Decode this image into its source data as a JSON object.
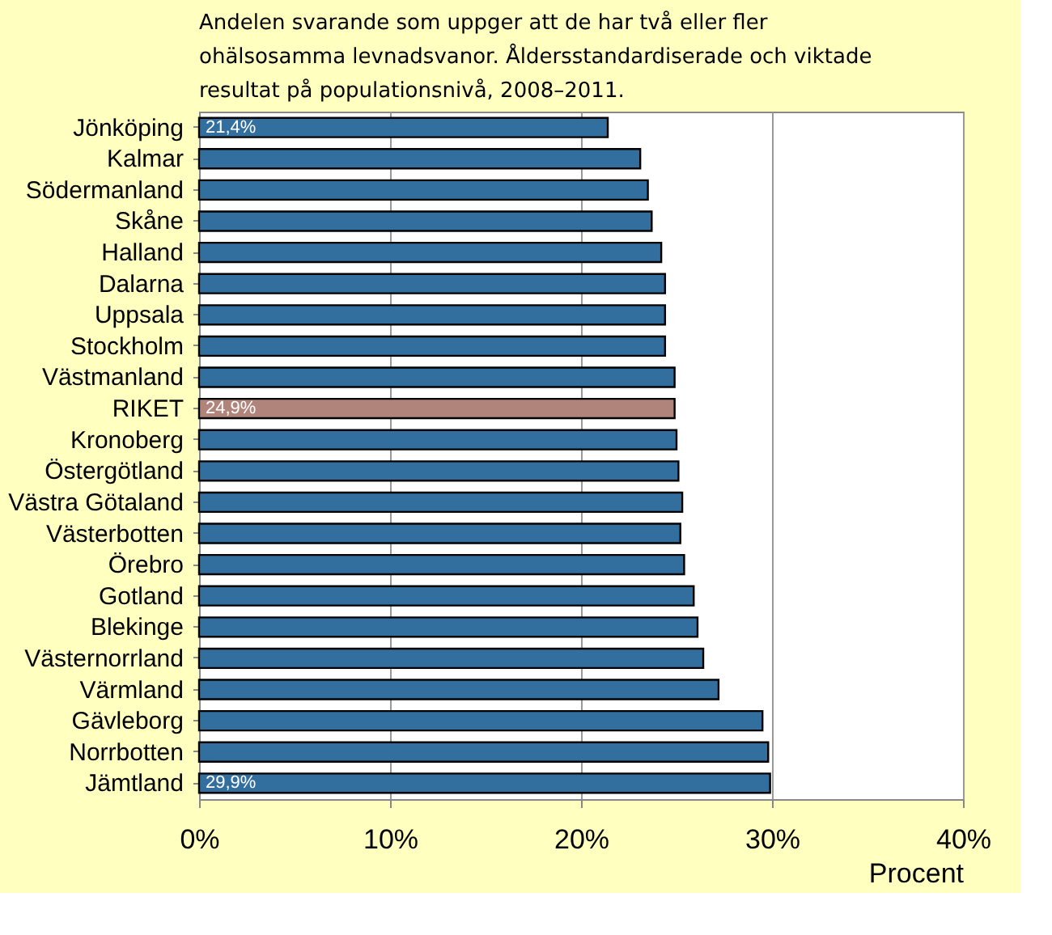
{
  "chart_data": {
    "type": "bar",
    "orientation": "horizontal",
    "title": "Andelen svarande som uppger att de har två eller fler ohälsosamma levnadsvanor. Åldersstandardiserade och viktade resultat på populationsnivå, 2008–2011.",
    "xlabel": "Procent",
    "categories": [
      "Jönköping",
      "Kalmar",
      "Södermanland",
      "Skåne",
      "Halland",
      "Dalarna",
      "Uppsala",
      "Stockholm",
      "Västmanland",
      "RIKET",
      "Kronoberg",
      "Östergötland",
      "Västra Götaland",
      "Västerbotten",
      "Örebro",
      "Gotland",
      "Blekinge",
      "Västernorrland",
      "Värmland",
      "Gävleborg",
      "Norrbotten",
      "Jämtland"
    ],
    "values": [
      21.4,
      23.1,
      23.5,
      23.7,
      24.2,
      24.4,
      24.4,
      24.4,
      24.9,
      24.9,
      25.0,
      25.1,
      25.3,
      25.2,
      25.4,
      25.9,
      26.1,
      26.4,
      27.2,
      29.5,
      29.8,
      29.9
    ],
    "colors": [
      "#336f9e",
      "#336f9e",
      "#336f9e",
      "#336f9e",
      "#336f9e",
      "#336f9e",
      "#336f9e",
      "#336f9e",
      "#336f9e",
      "#b0847a",
      "#336f9e",
      "#336f9e",
      "#336f9e",
      "#336f9e",
      "#336f9e",
      "#336f9e",
      "#336f9e",
      "#336f9e",
      "#336f9e",
      "#336f9e",
      "#336f9e",
      "#336f9e"
    ],
    "value_labels": [
      "21,4%",
      null,
      null,
      null,
      null,
      null,
      null,
      null,
      null,
      "24,9%",
      null,
      null,
      null,
      null,
      null,
      null,
      null,
      null,
      null,
      null,
      null,
      "29,9%"
    ],
    "xlim": [
      0,
      40
    ],
    "xticks": [
      {
        "value": 0,
        "label": "0%"
      },
      {
        "value": 10,
        "label": "10%"
      },
      {
        "value": 20,
        "label": "20%"
      },
      {
        "value": 30,
        "label": "30%"
      },
      {
        "value": 40,
        "label": "40%"
      }
    ],
    "grid": "x"
  }
}
